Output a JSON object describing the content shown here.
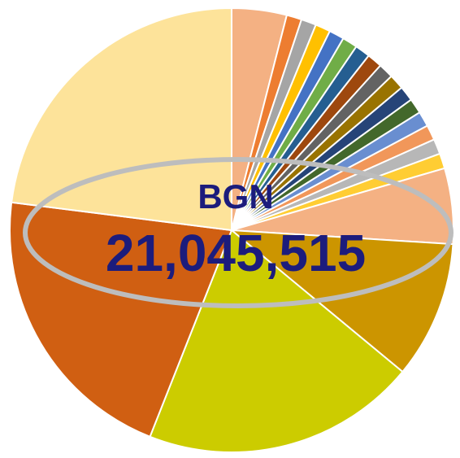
{
  "chart_data": {
    "type": "pie",
    "values": [
      4,
      1.1,
      1.1,
      1.1,
      1.1,
      1.1,
      1.1,
      1.1,
      1.1,
      1.1,
      1.1,
      1.1,
      1.1,
      1.1,
      1.1,
      1.1,
      5.5,
      10,
      20,
      21,
      23
    ],
    "colors": [
      "#f4b183",
      "#ed7d31",
      "#a5a5a5",
      "#ffc000",
      "#4472c4",
      "#70ad47",
      "#255e91",
      "#9e480e",
      "#636363",
      "#997300",
      "#264478",
      "#43682b",
      "#698ed0",
      "#f1975a",
      "#b7b7b7",
      "#ffcd33",
      "#f4b183",
      "#cc9500",
      "#cccc00",
      "#d05f12",
      "#fde39a"
    ],
    "center_title": "BGN",
    "center_value": "21,045,515"
  }
}
